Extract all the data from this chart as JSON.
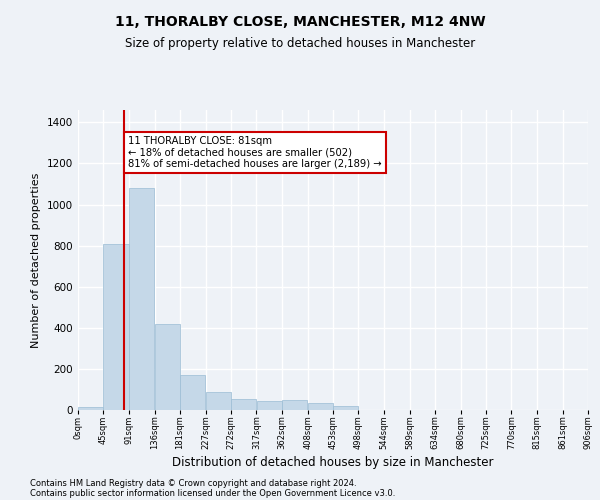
{
  "title1": "11, THORALBY CLOSE, MANCHESTER, M12 4NW",
  "title2": "Size of property relative to detached houses in Manchester",
  "xlabel": "Distribution of detached houses by size in Manchester",
  "ylabel": "Number of detached properties",
  "bar_color": "#c5d8e8",
  "bar_edge_color": "#9bbcd4",
  "bin_edges": [
    0,
    45,
    91,
    136,
    181,
    227,
    272,
    317,
    362,
    408,
    453,
    498,
    544,
    589,
    634,
    680,
    725,
    770,
    815,
    861,
    906
  ],
  "bin_labels": [
    "0sqm",
    "45sqm",
    "91sqm",
    "136sqm",
    "181sqm",
    "227sqm",
    "272sqm",
    "317sqm",
    "362sqm",
    "408sqm",
    "453sqm",
    "498sqm",
    "544sqm",
    "589sqm",
    "634sqm",
    "680sqm",
    "725sqm",
    "770sqm",
    "815sqm",
    "861sqm",
    "906sqm"
  ],
  "bar_heights": [
    15,
    810,
    1080,
    420,
    170,
    90,
    55,
    45,
    50,
    35,
    20,
    0,
    0,
    0,
    0,
    0,
    0,
    0,
    0,
    0
  ],
  "ylim": [
    0,
    1460
  ],
  "yticks": [
    0,
    200,
    400,
    600,
    800,
    1000,
    1200,
    1400
  ],
  "property_line_x": 81,
  "annotation_text": "11 THORALBY CLOSE: 81sqm\n← 18% of detached houses are smaller (502)\n81% of semi-detached houses are larger (2,189) →",
  "annotation_box_color": "#ffffff",
  "annotation_edge_color": "#cc0000",
  "vline_color": "#cc0000",
  "footer1": "Contains HM Land Registry data © Crown copyright and database right 2024.",
  "footer2": "Contains public sector information licensed under the Open Government Licence v3.0.",
  "background_color": "#eef2f7",
  "plot_background": "#eef2f7",
  "grid_color": "#ffffff"
}
